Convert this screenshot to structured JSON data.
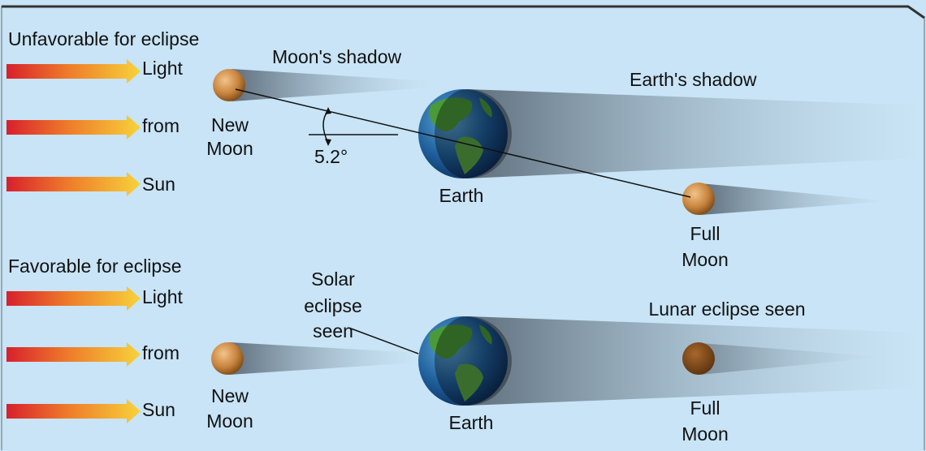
{
  "panels": [
    {
      "title": "Unfavorable for eclipse",
      "arrows": [
        "Light",
        "from",
        "Sun"
      ],
      "moon_shadow": "Moon's shadow",
      "new_moon": [
        "New",
        "Moon"
      ],
      "angle": "5.2°",
      "earth": "Earth",
      "earth_shadow": "Earth's shadow",
      "full_moon": [
        "Full",
        "Moon"
      ]
    },
    {
      "title": "Favorable for eclipse",
      "arrows": [
        "Light",
        "from",
        "Sun"
      ],
      "solar_note": [
        "Solar",
        "eclipse",
        "seen"
      ],
      "new_moon": [
        "New",
        "Moon"
      ],
      "earth": "Earth",
      "lunar_note": "Lunar eclipse seen",
      "full_moon": [
        "Full",
        "Moon"
      ]
    }
  ]
}
